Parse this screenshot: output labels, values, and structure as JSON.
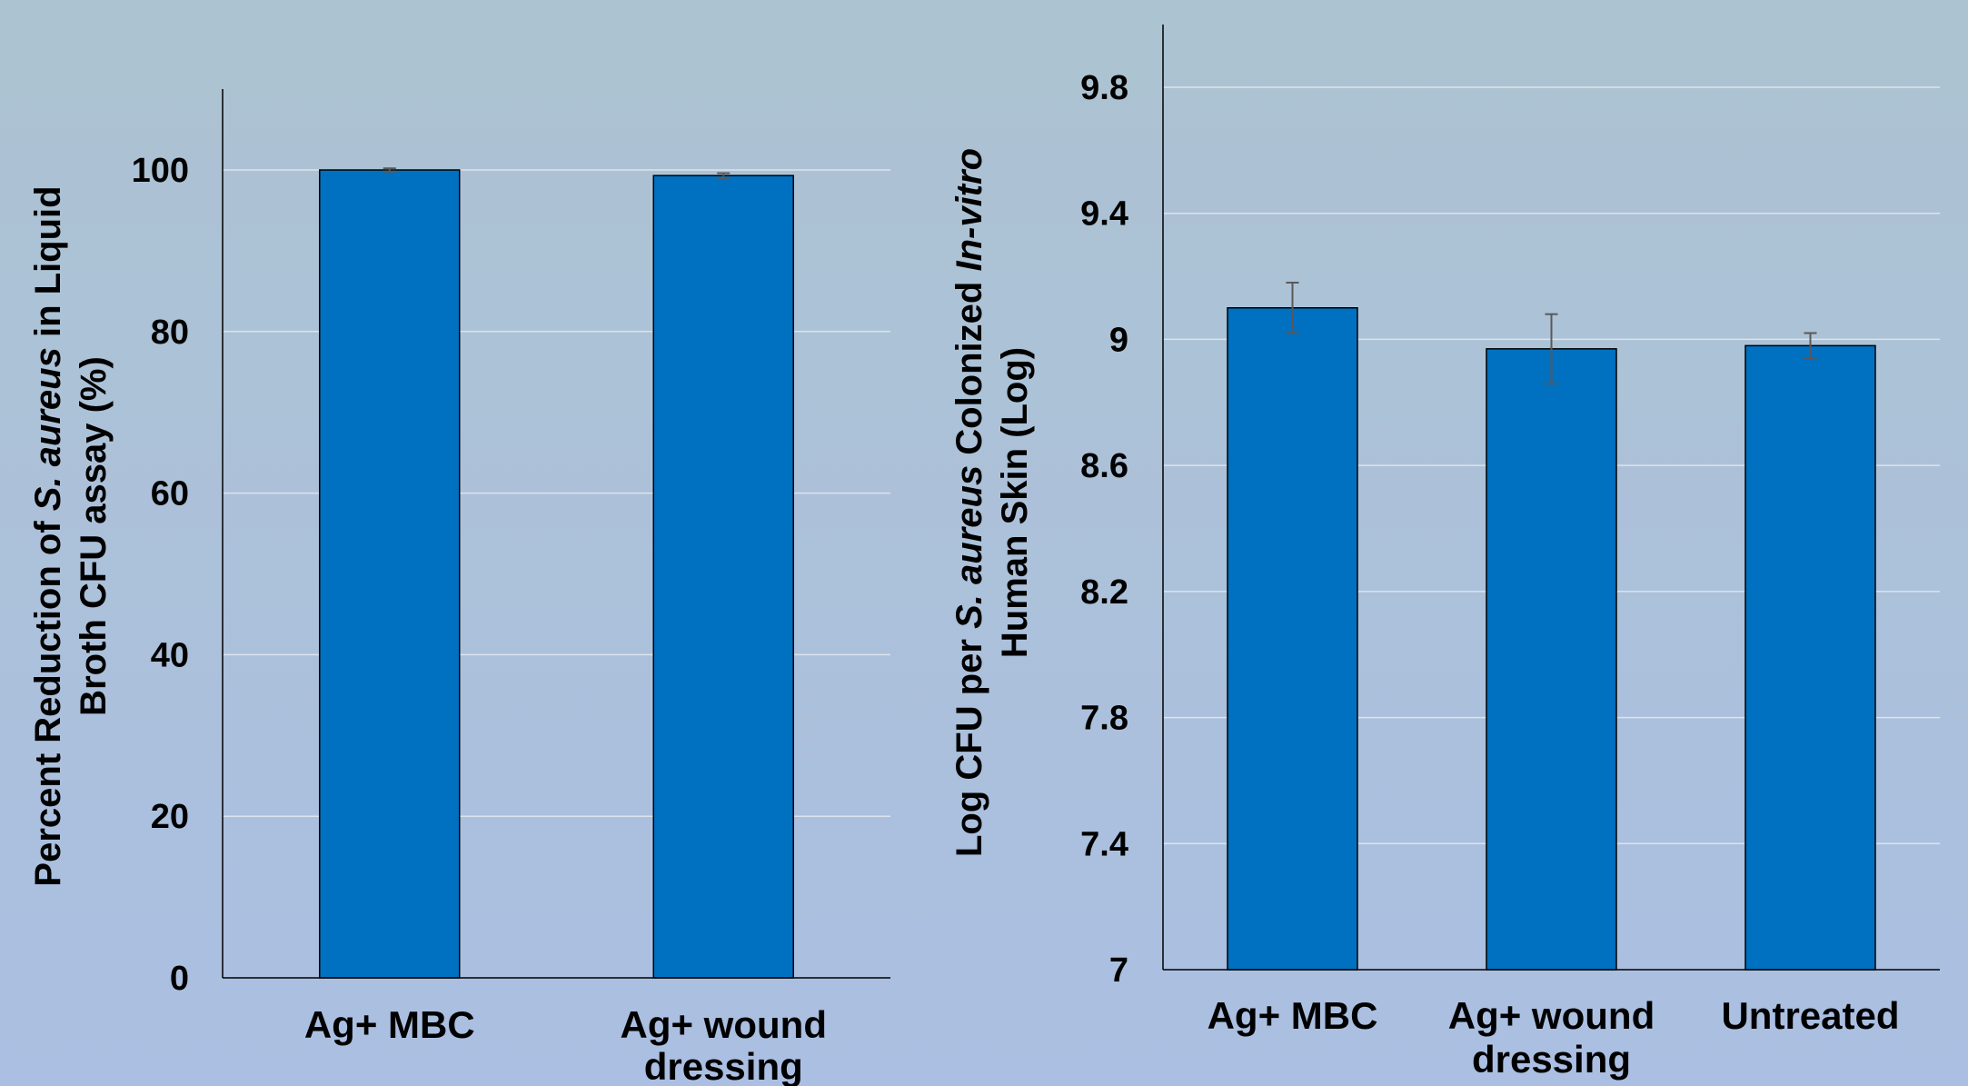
{
  "colors": {
    "bar": "#0070c0",
    "bar_edge": "#000000",
    "grid": "#dde3ec",
    "axis": "#000000",
    "error_bar": "#595959"
  },
  "chart_data": [
    {
      "type": "bar",
      "categories": [
        [
          "Ag+ MBC"
        ],
        [
          "Ag+ wound",
          "dressing"
        ]
      ],
      "values": [
        100,
        99.3
      ],
      "errors": [
        0.2,
        0.3
      ],
      "ylabel": {
        "line1": [
          "Percent Reduction of ",
          "S. aureus",
          " in Liquid"
        ],
        "line2": [
          "Broth CFU assay (%)"
        ]
      },
      "ylim": [
        0,
        110
      ],
      "yticks": [
        0,
        20,
        40,
        60,
        80,
        100
      ],
      "grid": true
    },
    {
      "type": "bar",
      "categories": [
        [
          "Ag+ MBC"
        ],
        [
          "Ag+ wound",
          "dressing"
        ],
        [
          "Untreated"
        ]
      ],
      "values": [
        9.1,
        8.97,
        8.98
      ],
      "errors": [
        0.08,
        0.11,
        0.04
      ],
      "ylabel": {
        "line1": [
          "Log CFU per ",
          "S. aureus",
          " Colonized ",
          "In-vitro"
        ],
        "line2": [
          "Human Skin (Log)"
        ]
      },
      "ylim": [
        7,
        10
      ],
      "yticks": [
        7,
        7.4,
        7.8,
        8.2,
        8.6,
        9,
        9.4,
        9.8
      ],
      "grid": true
    }
  ]
}
